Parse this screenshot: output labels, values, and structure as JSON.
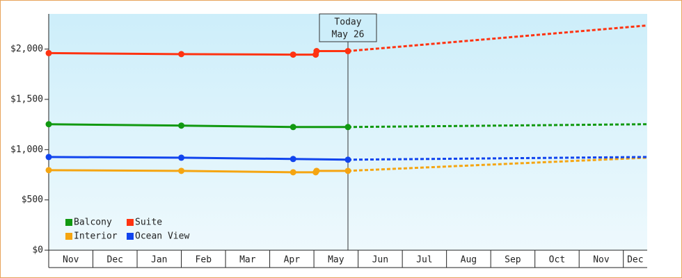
{
  "chart_data": {
    "type": "line",
    "annotation": [
      "Today",
      "May 26"
    ],
    "annotation_x": 6.77,
    "xlim": [
      0,
      13.54
    ],
    "ylim": [
      0,
      2350
    ],
    "xticks": [
      {
        "value": 0,
        "label": "Nov"
      },
      {
        "value": 1,
        "label": "Dec"
      },
      {
        "value": 2,
        "label": "Jan"
      },
      {
        "value": 3,
        "label": "Feb"
      },
      {
        "value": 4,
        "label": "Mar"
      },
      {
        "value": 5,
        "label": "Apr"
      },
      {
        "value": 6,
        "label": "May"
      },
      {
        "value": 7,
        "label": "Jun"
      },
      {
        "value": 8,
        "label": "Jul"
      },
      {
        "value": 9,
        "label": "Aug"
      },
      {
        "value": 10,
        "label": "Sep"
      },
      {
        "value": 11,
        "label": "Oct"
      },
      {
        "value": 12,
        "label": "Nov"
      },
      {
        "value": 13,
        "label": "Dec"
      }
    ],
    "yticks": [
      {
        "value": 0,
        "label": "$0"
      },
      {
        "value": 500,
        "label": "$500"
      },
      {
        "value": 1000,
        "label": "$1,000"
      },
      {
        "value": 1500,
        "label": "$1,500"
      },
      {
        "value": 2000,
        "label": "$2,000"
      }
    ],
    "forecast_x": [
      6.77,
      13.54
    ],
    "series": [
      {
        "name": "Balcony",
        "color": "#119911",
        "x": [
          0,
          3,
          5.53,
          6.77
        ],
        "values": [
          1253,
          1239,
          1225,
          1225
        ],
        "forecast": [
          1225,
          1253
        ]
      },
      {
        "name": "Suite",
        "color": "#ff3311",
        "x": [
          0,
          3,
          5.53,
          6.04,
          6.06,
          6.77
        ],
        "values": [
          1960,
          1950,
          1945,
          1945,
          1980,
          1980
        ],
        "forecast": [
          1980,
          2235
        ]
      },
      {
        "name": "Interior",
        "color": "#f5a511",
        "x": [
          0,
          3,
          5.53,
          6.04,
          6.06,
          6.77
        ],
        "values": [
          796,
          789,
          775,
          775,
          789,
          789
        ],
        "forecast": [
          789,
          920
        ]
      },
      {
        "name": "Ocean View",
        "color": "#1144ee",
        "x": [
          0,
          3,
          5.53,
          6.77
        ],
        "values": [
          927,
          920,
          907,
          900
        ],
        "forecast": [
          900,
          927
        ]
      }
    ]
  }
}
